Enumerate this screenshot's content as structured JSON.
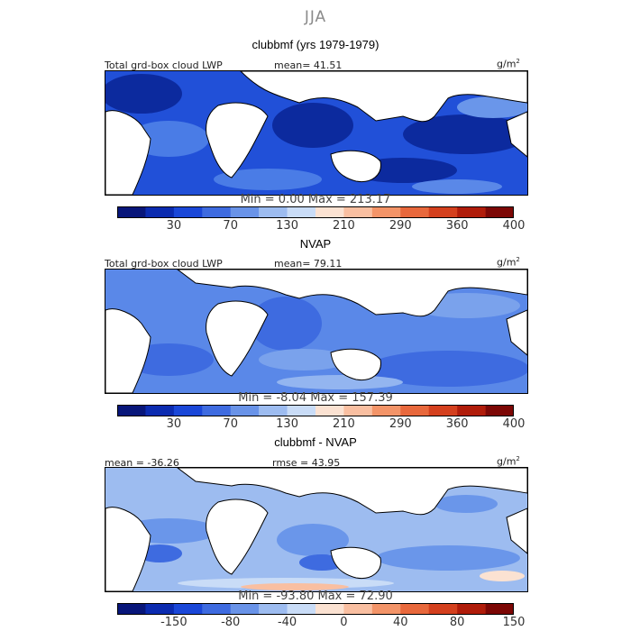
{
  "season": "JJA",
  "units_label": "g/m",
  "units_exp": "2",
  "panels": [
    {
      "title": "clubbmf (yrs 1979-1979)",
      "left_label": "Total grd-box cloud LWP",
      "center_label": "mean=  41.51",
      "minmax": "Min =    0.00 Max = 213.17",
      "ticks": [
        "30",
        "70",
        "130",
        "210",
        "290",
        "360",
        "400"
      ]
    },
    {
      "title": "NVAP",
      "left_label": "Total grd-box cloud LWP",
      "center_label": "mean=  79.11",
      "minmax": "Min =   -8.04 Max = 157.39",
      "ticks": [
        "30",
        "70",
        "130",
        "210",
        "290",
        "360",
        "400"
      ]
    },
    {
      "title": "clubbmf - NVAP",
      "left_label": "mean = -36.26",
      "center_label": "rmse =  43.95",
      "minmax": "Min = -93.80 Max =  72.90",
      "ticks": [
        "-150",
        "-80",
        "-40",
        "0",
        "40",
        "80",
        "150"
      ]
    }
  ],
  "colorbar": [
    "#08167a",
    "#0b2bb0",
    "#1a47d8",
    "#3e6be0",
    "#6993e8",
    "#9dbcf0",
    "#c9dcf7",
    "#fbe2d2",
    "#f9bfa1",
    "#f39468",
    "#e8683c",
    "#d4401e",
    "#b01c0a",
    "#7c0705"
  ],
  "chart_data": [
    {
      "type": "heatmap",
      "title": "clubbmf (yrs 1979-1979)",
      "subtitle": "Total grd-box cloud LWP",
      "units": "g/m2",
      "mean": 41.51,
      "min": 0.0,
      "max": 213.17,
      "colorbar_ticks": [
        30,
        70,
        130,
        210,
        290,
        360,
        400
      ]
    },
    {
      "type": "heatmap",
      "title": "NVAP",
      "subtitle": "Total grd-box cloud LWP",
      "units": "g/m2",
      "mean": 79.11,
      "min": -8.04,
      "max": 157.39,
      "colorbar_ticks": [
        30,
        70,
        130,
        210,
        290,
        360,
        400
      ]
    },
    {
      "type": "heatmap",
      "title": "clubbmf - NVAP",
      "units": "g/m2",
      "mean": -36.26,
      "rmse": 43.95,
      "min": -93.8,
      "max": 72.9,
      "colorbar_ticks": [
        -150,
        -80,
        -40,
        0,
        40,
        80,
        150
      ]
    }
  ]
}
